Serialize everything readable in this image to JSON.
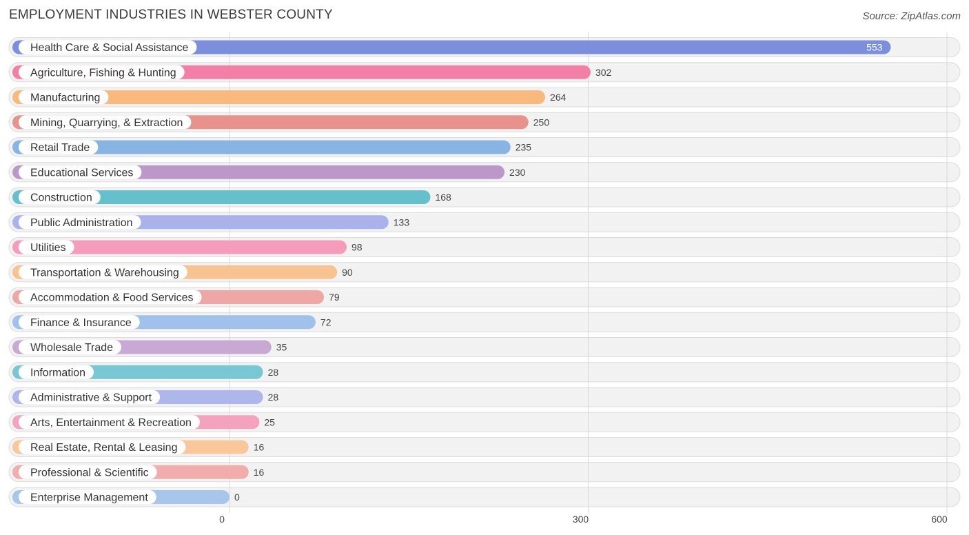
{
  "chart_data": {
    "type": "bar",
    "orientation": "horizontal",
    "title": "EMPLOYMENT INDUSTRIES IN WEBSTER COUNTY",
    "source": "Source: ZipAtlas.com",
    "xlim": [
      0,
      600
    ],
    "xticks": [
      0,
      300,
      600
    ],
    "xtick_labels": [
      "0",
      "300",
      "600"
    ],
    "grid": true,
    "categories": [
      "Health Care & Social Assistance",
      "Agriculture, Fishing & Hunting",
      "Manufacturing",
      "Mining, Quarrying, & Extraction",
      "Retail Trade",
      "Educational Services",
      "Construction",
      "Public Administration",
      "Utilities",
      "Transportation & Warehousing",
      "Accommodation & Food Services",
      "Finance & Insurance",
      "Wholesale Trade",
      "Information",
      "Administrative & Support",
      "Arts, Entertainment & Recreation",
      "Real Estate, Rental & Leasing",
      "Professional & Scientific",
      "Enterprise Management"
    ],
    "values": [
      553,
      302,
      264,
      250,
      235,
      230,
      168,
      133,
      98,
      90,
      79,
      72,
      35,
      28,
      28,
      25,
      16,
      16,
      0
    ],
    "value_labels": [
      "553",
      "302",
      "264",
      "250",
      "235",
      "230",
      "168",
      "133",
      "98",
      "90",
      "79",
      "72",
      "35",
      "28",
      "28",
      "25",
      "16",
      "16",
      "0"
    ],
    "colors": [
      "#7b8fdc",
      "#f47fa6",
      "#f9b97d",
      "#e8928d",
      "#88b4e4",
      "#bc98c8",
      "#66c0cc",
      "#a9b2ea",
      "#f59bbb",
      "#f8c38f",
      "#eea7a5",
      "#9fc1ea",
      "#c8a9d4",
      "#78c7d2",
      "#afb6ec",
      "#f5a2bf",
      "#f9c79a",
      "#f0adab",
      "#a6c6ec"
    ],
    "track_color": "#f2f2f2",
    "track_border": "#dcdcdc",
    "grid_color": "#d8d8d8"
  }
}
